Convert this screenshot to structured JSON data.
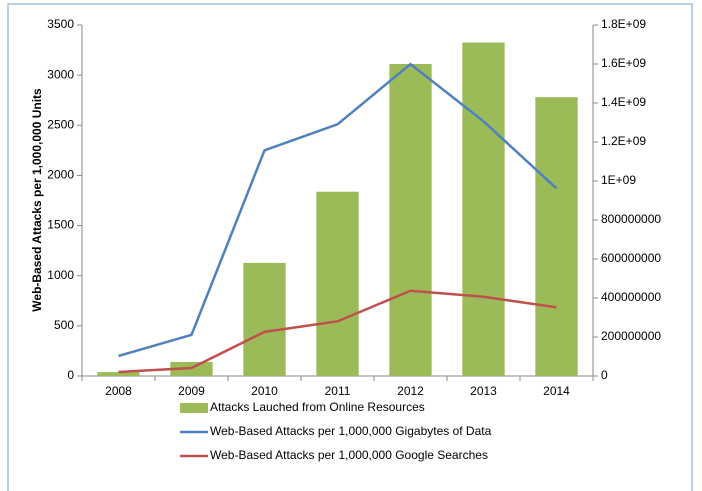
{
  "chart_data": {
    "type": "bar_line",
    "y_label": "Web-Based Attacks per 1,000,000 Units",
    "categories": [
      "2008",
      "2009",
      "2010",
      "2011",
      "2012",
      "2013",
      "2014"
    ],
    "series": [
      {
        "name": "Attacks Lauched from Online Resources",
        "type": "bar",
        "axis": "y2",
        "color": "#9bbb59",
        "values": [
          20000000,
          72000000,
          580000000,
          945000000,
          1600000000,
          1710000000,
          1430000000
        ]
      },
      {
        "name": "Web-Based Attacks per 1,000,000 Gigabytes of Data",
        "type": "line",
        "color": "#4f81bd",
        "values": [
          200,
          410,
          2250,
          2510,
          3110,
          2540,
          1870
        ]
      },
      {
        "name": "Web-Based Attacks per 1,000,000 Google Searches",
        "type": "line",
        "color": "#c0504d",
        "values": [
          40,
          80,
          440,
          545,
          850,
          790,
          685
        ]
      }
    ],
    "ylim": [
      0,
      3500
    ],
    "yticks": [
      0,
      500,
      1000,
      1500,
      2000,
      2500,
      3000,
      3500
    ],
    "y2lim": [
      0,
      1800000000
    ],
    "y2ticks": [
      0,
      200000000,
      400000000,
      600000000,
      800000000,
      {
        "value": 1000000000,
        "label": "1E+09"
      },
      {
        "value": 1200000000,
        "label": "1.2E+09"
      },
      {
        "value": 1400000000,
        "label": "1.4E+09"
      },
      {
        "value": 1600000000,
        "label": "1.6E+09"
      },
      {
        "value": 1800000000,
        "label": "1.8E+09"
      }
    ],
    "grid": false,
    "legend": "bottom"
  }
}
